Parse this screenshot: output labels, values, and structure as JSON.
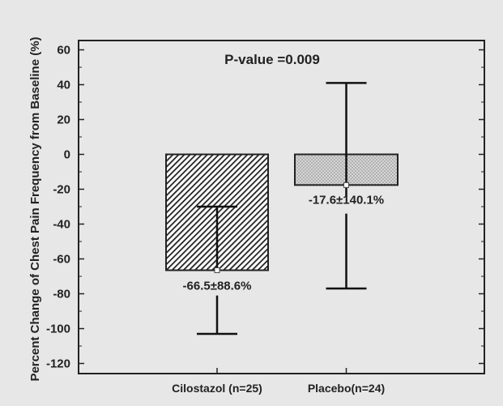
{
  "chart_data": {
    "type": "bar",
    "categories": [
      "Cilostazol (n=25)",
      "Placebo(n=24)"
    ],
    "values": [
      -66.5,
      -17.6
    ],
    "error_bars": [
      {
        "lower": -103,
        "upper": -30
      },
      {
        "lower": -77,
        "upper": 41
      }
    ],
    "data_labels": [
      "-66.5±88.6%",
      "-17.6±140.1%"
    ],
    "bar_patterns": [
      "dense-diagonal-hatch",
      "fine-dots"
    ],
    "annotation": "P-value =0.009",
    "ylabel": "Percent Change of Chest Pain Frequency from Baseline (%)",
    "xlabel": "",
    "ylim": [
      -125,
      65
    ],
    "yticks": [
      60,
      40,
      20,
      0,
      -20,
      -40,
      -60,
      -80,
      -100,
      -120
    ],
    "grid": false,
    "colors": {
      "background": "#e7e7e7",
      "axis": "#222222",
      "placebo_fill": "#d6d6d6"
    }
  }
}
